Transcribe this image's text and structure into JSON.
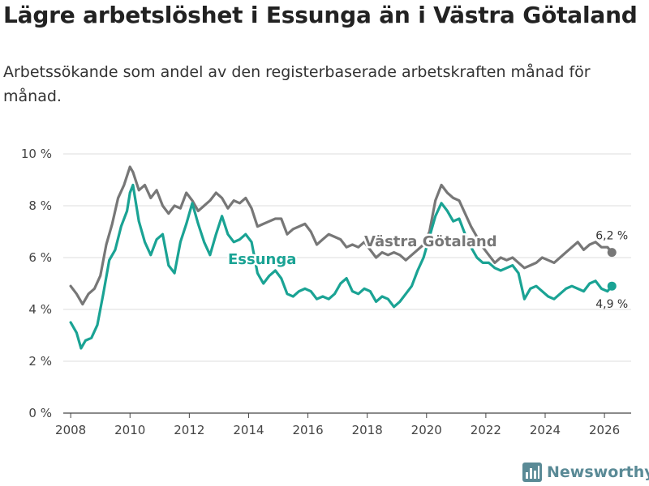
{
  "title": "Lägre arbetslöshet i Essunga än i Västra Götaland",
  "subtitle": "Arbetssökande som andel av den registerbaserade arbetskraften månad för månad.",
  "brand": {
    "name": "Newsworthy",
    "icon": "newsworthy-logo-icon"
  },
  "colors": {
    "essunga": "#1aa394",
    "vastra": "#777777",
    "grid": "#dddddd",
    "axis": "#444444"
  },
  "chart_data": {
    "type": "line",
    "title": "Lägre arbetslöshet i Essunga än i Västra Götaland",
    "xlabel": "",
    "ylabel": "",
    "xlim": [
      2007.75,
      2026.9
    ],
    "ylim": [
      0,
      10
    ],
    "x_ticks": [
      2008,
      2010,
      2012,
      2014,
      2016,
      2018,
      2020,
      2022,
      2024,
      2026
    ],
    "x_tick_labels": [
      "2008",
      "2010",
      "2012",
      "2014",
      "2016",
      "2018",
      "2020",
      "2022",
      "2024",
      "2026"
    ],
    "y_ticks": [
      0,
      2,
      4,
      6,
      8,
      10
    ],
    "y_tick_labels": [
      "0 %",
      "2 %",
      "4 %",
      "6 %",
      "8 %",
      "10 %"
    ],
    "grid": true,
    "series": [
      {
        "name": "Västra Götaland",
        "label": "Västra Götaland",
        "end_label": "6,2 %",
        "points": [
          [
            2008.0,
            4.9
          ],
          [
            2008.2,
            4.6
          ],
          [
            2008.4,
            4.2
          ],
          [
            2008.6,
            4.6
          ],
          [
            2008.8,
            4.8
          ],
          [
            2009.0,
            5.3
          ],
          [
            2009.2,
            6.5
          ],
          [
            2009.4,
            7.3
          ],
          [
            2009.6,
            8.3
          ],
          [
            2009.8,
            8.8
          ],
          [
            2010.0,
            9.5
          ],
          [
            2010.1,
            9.3
          ],
          [
            2010.3,
            8.6
          ],
          [
            2010.5,
            8.8
          ],
          [
            2010.7,
            8.3
          ],
          [
            2010.9,
            8.6
          ],
          [
            2011.1,
            8.0
          ],
          [
            2011.3,
            7.7
          ],
          [
            2011.5,
            8.0
          ],
          [
            2011.7,
            7.9
          ],
          [
            2011.9,
            8.5
          ],
          [
            2012.1,
            8.2
          ],
          [
            2012.3,
            7.8
          ],
          [
            2012.5,
            8.0
          ],
          [
            2012.7,
            8.2
          ],
          [
            2012.9,
            8.5
          ],
          [
            2013.1,
            8.3
          ],
          [
            2013.3,
            7.9
          ],
          [
            2013.5,
            8.2
          ],
          [
            2013.7,
            8.1
          ],
          [
            2013.9,
            8.3
          ],
          [
            2014.1,
            7.9
          ],
          [
            2014.3,
            7.2
          ],
          [
            2014.5,
            7.3
          ],
          [
            2014.7,
            7.4
          ],
          [
            2014.9,
            7.5
          ],
          [
            2015.1,
            7.5
          ],
          [
            2015.3,
            6.9
          ],
          [
            2015.5,
            7.1
          ],
          [
            2015.7,
            7.2
          ],
          [
            2015.9,
            7.3
          ],
          [
            2016.1,
            7.0
          ],
          [
            2016.3,
            6.5
          ],
          [
            2016.5,
            6.7
          ],
          [
            2016.7,
            6.9
          ],
          [
            2016.9,
            6.8
          ],
          [
            2017.1,
            6.7
          ],
          [
            2017.3,
            6.4
          ],
          [
            2017.5,
            6.5
          ],
          [
            2017.7,
            6.4
          ],
          [
            2017.9,
            6.6
          ],
          [
            2018.1,
            6.3
          ],
          [
            2018.3,
            6.0
          ],
          [
            2018.5,
            6.2
          ],
          [
            2018.7,
            6.1
          ],
          [
            2018.9,
            6.2
          ],
          [
            2019.1,
            6.1
          ],
          [
            2019.3,
            5.9
          ],
          [
            2019.5,
            6.1
          ],
          [
            2019.7,
            6.3
          ],
          [
            2019.9,
            6.5
          ],
          [
            2020.1,
            7.0
          ],
          [
            2020.3,
            8.2
          ],
          [
            2020.5,
            8.8
          ],
          [
            2020.7,
            8.5
          ],
          [
            2020.9,
            8.3
          ],
          [
            2021.1,
            8.2
          ],
          [
            2021.3,
            7.7
          ],
          [
            2021.5,
            7.2
          ],
          [
            2021.7,
            6.8
          ],
          [
            2021.9,
            6.4
          ],
          [
            2022.1,
            6.1
          ],
          [
            2022.3,
            5.8
          ],
          [
            2022.5,
            6.0
          ],
          [
            2022.7,
            5.9
          ],
          [
            2022.9,
            6.0
          ],
          [
            2023.1,
            5.8
          ],
          [
            2023.3,
            5.6
          ],
          [
            2023.5,
            5.7
          ],
          [
            2023.7,
            5.8
          ],
          [
            2023.9,
            6.0
          ],
          [
            2024.1,
            5.9
          ],
          [
            2024.3,
            5.8
          ],
          [
            2024.5,
            6.0
          ],
          [
            2024.7,
            6.2
          ],
          [
            2024.9,
            6.4
          ],
          [
            2025.1,
            6.6
          ],
          [
            2025.3,
            6.3
          ],
          [
            2025.5,
            6.5
          ],
          [
            2025.7,
            6.6
          ],
          [
            2025.9,
            6.4
          ],
          [
            2026.1,
            6.4
          ],
          [
            2026.25,
            6.2
          ]
        ]
      },
      {
        "name": "Essunga",
        "label": "Essunga",
        "end_label": "4,9 %",
        "points": [
          [
            2008.0,
            3.5
          ],
          [
            2008.2,
            3.1
          ],
          [
            2008.35,
            2.5
          ],
          [
            2008.5,
            2.8
          ],
          [
            2008.7,
            2.9
          ],
          [
            2008.9,
            3.4
          ],
          [
            2009.1,
            4.6
          ],
          [
            2009.3,
            5.9
          ],
          [
            2009.5,
            6.3
          ],
          [
            2009.7,
            7.2
          ],
          [
            2009.9,
            7.8
          ],
          [
            2010.0,
            8.5
          ],
          [
            2010.1,
            8.8
          ],
          [
            2010.3,
            7.4
          ],
          [
            2010.5,
            6.6
          ],
          [
            2010.7,
            6.1
          ],
          [
            2010.9,
            6.7
          ],
          [
            2011.1,
            6.9
          ],
          [
            2011.3,
            5.7
          ],
          [
            2011.5,
            5.4
          ],
          [
            2011.7,
            6.6
          ],
          [
            2011.9,
            7.3
          ],
          [
            2012.1,
            8.1
          ],
          [
            2012.3,
            7.3
          ],
          [
            2012.5,
            6.6
          ],
          [
            2012.7,
            6.1
          ],
          [
            2012.9,
            6.9
          ],
          [
            2013.1,
            7.6
          ],
          [
            2013.3,
            6.9
          ],
          [
            2013.5,
            6.6
          ],
          [
            2013.7,
            6.7
          ],
          [
            2013.9,
            6.9
          ],
          [
            2014.1,
            6.6
          ],
          [
            2014.3,
            5.4
          ],
          [
            2014.5,
            5.0
          ],
          [
            2014.7,
            5.3
          ],
          [
            2014.9,
            5.5
          ],
          [
            2015.1,
            5.2
          ],
          [
            2015.3,
            4.6
          ],
          [
            2015.5,
            4.5
          ],
          [
            2015.7,
            4.7
          ],
          [
            2015.9,
            4.8
          ],
          [
            2016.1,
            4.7
          ],
          [
            2016.3,
            4.4
          ],
          [
            2016.5,
            4.5
          ],
          [
            2016.7,
            4.4
          ],
          [
            2016.9,
            4.6
          ],
          [
            2017.1,
            5.0
          ],
          [
            2017.3,
            5.2
          ],
          [
            2017.5,
            4.7
          ],
          [
            2017.7,
            4.6
          ],
          [
            2017.9,
            4.8
          ],
          [
            2018.1,
            4.7
          ],
          [
            2018.3,
            4.3
          ],
          [
            2018.5,
            4.5
          ],
          [
            2018.7,
            4.4
          ],
          [
            2018.9,
            4.1
          ],
          [
            2019.1,
            4.3
          ],
          [
            2019.3,
            4.6
          ],
          [
            2019.5,
            4.9
          ],
          [
            2019.7,
            5.5
          ],
          [
            2019.9,
            6.0
          ],
          [
            2020.1,
            6.8
          ],
          [
            2020.3,
            7.6
          ],
          [
            2020.5,
            8.1
          ],
          [
            2020.7,
            7.8
          ],
          [
            2020.9,
            7.4
          ],
          [
            2021.1,
            7.5
          ],
          [
            2021.3,
            6.9
          ],
          [
            2021.5,
            6.4
          ],
          [
            2021.7,
            6.0
          ],
          [
            2021.9,
            5.8
          ],
          [
            2022.1,
            5.8
          ],
          [
            2022.3,
            5.6
          ],
          [
            2022.5,
            5.5
          ],
          [
            2022.7,
            5.6
          ],
          [
            2022.9,
            5.7
          ],
          [
            2023.1,
            5.4
          ],
          [
            2023.3,
            4.4
          ],
          [
            2023.5,
            4.8
          ],
          [
            2023.7,
            4.9
          ],
          [
            2023.9,
            4.7
          ],
          [
            2024.1,
            4.5
          ],
          [
            2024.3,
            4.4
          ],
          [
            2024.5,
            4.6
          ],
          [
            2024.7,
            4.8
          ],
          [
            2024.9,
            4.9
          ],
          [
            2025.1,
            4.8
          ],
          [
            2025.3,
            4.7
          ],
          [
            2025.5,
            5.0
          ],
          [
            2025.7,
            5.1
          ],
          [
            2025.9,
            4.8
          ],
          [
            2026.1,
            4.7
          ],
          [
            2026.25,
            4.9
          ]
        ]
      }
    ]
  }
}
